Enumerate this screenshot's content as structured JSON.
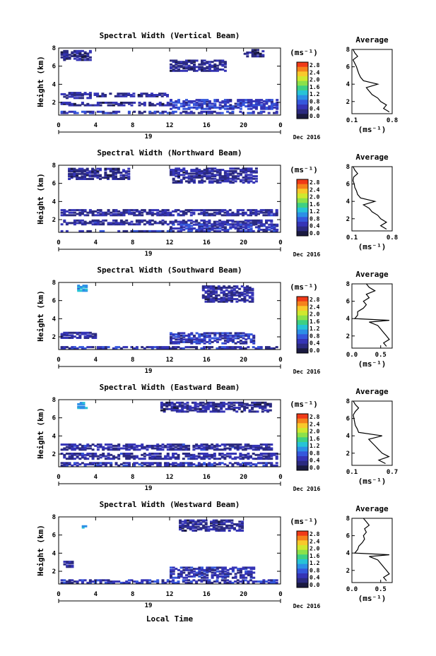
{
  "figure": {
    "xlabel": "Local Time",
    "date_label": "19",
    "month_label": "Dec 2016"
  },
  "colorbar": {
    "unit": "(ms⁻¹)",
    "ticks": [
      "2.8",
      "2.4",
      "2.0",
      "1.6",
      "1.2",
      "0.8",
      "0.4",
      "0.0"
    ],
    "colors": [
      "#f03a18",
      "#f5821c",
      "#f8c92b",
      "#cfe82f",
      "#8be14a",
      "#3ed083",
      "#27c3d6",
      "#2c8fe6",
      "#3557dc",
      "#3534b6",
      "#2b2a80",
      "#1a1a40"
    ]
  },
  "chart_data": [
    {
      "type": "heatmap",
      "title": "Spectral Width (Vertical Beam)",
      "xlabel": "Local Time",
      "ylabel": "Height (km)",
      "xlim": [
        0,
        24
      ],
      "ylim": [
        0.6,
        8
      ],
      "xticks": [
        "0",
        "4",
        "8",
        "12",
        "16",
        "20",
        "0"
      ],
      "yticks": [
        "2",
        "4",
        "6",
        "8"
      ],
      "patches": [
        {
          "t": [
            0.2,
            3.4
          ],
          "h": [
            6.8,
            7.9
          ],
          "v": 0.3
        },
        {
          "t": [
            12.0,
            18.0
          ],
          "h": [
            5.6,
            6.8
          ],
          "v": 0.35
        },
        {
          "t": [
            20.0,
            22.0
          ],
          "h": [
            7.2,
            7.9
          ],
          "v": 0.3
        },
        {
          "t": [
            0.2,
            3.5
          ],
          "h": [
            2.6,
            3.3
          ],
          "v": 0.4
        },
        {
          "t": [
            3.5,
            12.0
          ],
          "h": [
            2.8,
            3.1
          ],
          "v": 0.35
        },
        {
          "t": [
            12.0,
            23.5
          ],
          "h": [
            1.4,
            2.4
          ],
          "v": 0.6
        },
        {
          "t": [
            0.2,
            12.0
          ],
          "h": [
            1.8,
            2.1
          ],
          "v": 0.35
        },
        {
          "t": [
            0.2,
            23.8
          ],
          "h": [
            0.8,
            1.2
          ],
          "v": 0.5
        }
      ],
      "average": {
        "xlabel": "(ms⁻¹)",
        "xlim": [
          0.1,
          0.8
        ],
        "xticks": [
          "0.1",
          "0.8"
        ],
        "profile": [
          [
            0.8,
            0.75
          ],
          [
            1.2,
            0.65
          ],
          [
            1.6,
            0.7
          ],
          [
            2.0,
            0.6
          ],
          [
            2.4,
            0.55
          ],
          [
            2.8,
            0.45
          ],
          [
            3.2,
            0.4
          ],
          [
            3.6,
            0.35
          ],
          [
            4.0,
            0.55
          ],
          [
            4.4,
            0.3
          ],
          [
            4.8,
            0.25
          ],
          [
            5.2,
            0.22
          ],
          [
            5.6,
            0.2
          ],
          [
            6.0,
            0.18
          ],
          [
            6.4,
            0.15
          ],
          [
            6.8,
            0.12
          ],
          [
            7.2,
            0.2
          ],
          [
            7.6,
            0.15
          ],
          [
            8.0,
            0.12
          ]
        ]
      }
    },
    {
      "type": "heatmap",
      "title": "Spectral Width (Northward Beam)",
      "xlabel": "Local Time",
      "ylabel": "Height (km)",
      "xlim": [
        0,
        24
      ],
      "ylim": [
        0.6,
        8
      ],
      "xticks": [
        "0",
        "4",
        "8",
        "12",
        "16",
        "20",
        "0"
      ],
      "yticks": [
        "2",
        "4",
        "6",
        "8"
      ],
      "patches": [
        {
          "t": [
            1.0,
            7.5
          ],
          "h": [
            6.6,
            7.8
          ],
          "v": 0.3
        },
        {
          "t": [
            12.0,
            21.5
          ],
          "h": [
            6.2,
            7.8
          ],
          "v": 0.35
        },
        {
          "t": [
            0.2,
            23.8
          ],
          "h": [
            2.6,
            3.3
          ],
          "v": 0.4
        },
        {
          "t": [
            0.2,
            23.0
          ],
          "h": [
            1.6,
            2.1
          ],
          "v": 0.4
        },
        {
          "t": [
            12.0,
            23.5
          ],
          "h": [
            1.0,
            1.6
          ],
          "v": 0.55
        },
        {
          "t": [
            0.2,
            23.8
          ],
          "h": [
            0.7,
            0.95
          ],
          "v": 0.5
        }
      ],
      "average": {
        "xlabel": "(ms⁻¹)",
        "xlim": [
          0.1,
          0.8
        ],
        "xticks": [
          "0.1",
          "0.8"
        ],
        "profile": [
          [
            0.8,
            0.7
          ],
          [
            1.2,
            0.6
          ],
          [
            1.6,
            0.7
          ],
          [
            2.0,
            0.6
          ],
          [
            2.4,
            0.55
          ],
          [
            2.8,
            0.45
          ],
          [
            3.2,
            0.4
          ],
          [
            3.6,
            0.3
          ],
          [
            4.0,
            0.5
          ],
          [
            4.4,
            0.25
          ],
          [
            4.8,
            0.2
          ],
          [
            5.2,
            0.18
          ],
          [
            5.6,
            0.15
          ],
          [
            6.0,
            0.14
          ],
          [
            6.4,
            0.12
          ],
          [
            6.8,
            0.13
          ],
          [
            7.2,
            0.2
          ],
          [
            7.6,
            0.15
          ],
          [
            8.0,
            0.12
          ]
        ]
      }
    },
    {
      "type": "heatmap",
      "title": "Spectral Width (Southward Beam)",
      "xlabel": "Local Time",
      "ylabel": "Height (km)",
      "xlim": [
        0,
        24
      ],
      "ylim": [
        0.6,
        8
      ],
      "xticks": [
        "0",
        "4",
        "8",
        "12",
        "16",
        "20",
        "0"
      ],
      "yticks": [
        "2",
        "4",
        "6",
        "8"
      ],
      "patches": [
        {
          "t": [
            2.0,
            3.0
          ],
          "h": [
            7.2,
            7.8
          ],
          "v": 1.1
        },
        {
          "t": [
            15.5,
            21.0
          ],
          "h": [
            6.0,
            7.8
          ],
          "v": 0.35
        },
        {
          "t": [
            0.2,
            4.0
          ],
          "h": [
            2.0,
            2.7
          ],
          "v": 0.4
        },
        {
          "t": [
            12.0,
            21.0
          ],
          "h": [
            1.4,
            2.6
          ],
          "v": 0.5
        },
        {
          "t": [
            0.2,
            23.5
          ],
          "h": [
            0.7,
            1.1
          ],
          "v": 0.5
        }
      ],
      "average": {
        "xlabel": "(ms⁻¹)",
        "xlim": [
          0.0,
          0.7
        ],
        "xticks": [
          "0.0",
          "0.5"
        ],
        "profile": [
          [
            0.8,
            0.6
          ],
          [
            1.2,
            0.55
          ],
          [
            1.6,
            0.65
          ],
          [
            2.0,
            0.6
          ],
          [
            2.4,
            0.55
          ],
          [
            2.8,
            0.5
          ],
          [
            3.2,
            0.45
          ],
          [
            3.6,
            0.3
          ],
          [
            3.8,
            0.65
          ],
          [
            4.0,
            0.05
          ],
          [
            4.4,
            0.1
          ],
          [
            4.8,
            0.1
          ],
          [
            5.2,
            0.2
          ],
          [
            5.6,
            0.25
          ],
          [
            6.0,
            0.2
          ],
          [
            6.4,
            0.3
          ],
          [
            6.8,
            0.25
          ],
          [
            7.2,
            0.4
          ],
          [
            7.6,
            0.3
          ],
          [
            8.0,
            0.25
          ]
        ]
      }
    },
    {
      "type": "heatmap",
      "title": "Spectral Width (Eastward Beam)",
      "xlabel": "Local Time",
      "ylabel": "Height (km)",
      "xlim": [
        0,
        24
      ],
      "ylim": [
        0.6,
        8
      ],
      "xticks": [
        "0",
        "4",
        "8",
        "12",
        "16",
        "20",
        "0"
      ],
      "yticks": [
        "2",
        "4",
        "6",
        "8"
      ],
      "patches": [
        {
          "t": [
            2.0,
            3.0
          ],
          "h": [
            7.2,
            7.8
          ],
          "v": 1.1
        },
        {
          "t": [
            11.0,
            23.0
          ],
          "h": [
            6.8,
            7.8
          ],
          "v": 0.35
        },
        {
          "t": [
            0.2,
            23.0
          ],
          "h": [
            2.6,
            3.3
          ],
          "v": 0.4
        },
        {
          "t": [
            0.2,
            23.5
          ],
          "h": [
            1.6,
            2.3
          ],
          "v": 0.4
        },
        {
          "t": [
            0.2,
            23.8
          ],
          "h": [
            0.7,
            1.2
          ],
          "v": 0.5
        }
      ],
      "average": {
        "xlabel": "(ms⁻¹)",
        "xlim": [
          0.1,
          0.7
        ],
        "xticks": [
          "0.1",
          "0.7"
        ],
        "profile": [
          [
            0.8,
            0.6
          ],
          [
            1.2,
            0.5
          ],
          [
            1.6,
            0.65
          ],
          [
            2.0,
            0.55
          ],
          [
            2.4,
            0.5
          ],
          [
            2.8,
            0.45
          ],
          [
            3.2,
            0.4
          ],
          [
            3.6,
            0.35
          ],
          [
            4.0,
            0.55
          ],
          [
            4.4,
            0.2
          ],
          [
            4.8,
            0.18
          ],
          [
            5.2,
            0.15
          ],
          [
            5.6,
            0.14
          ],
          [
            6.0,
            0.13
          ],
          [
            6.4,
            0.12
          ],
          [
            6.8,
            0.15
          ],
          [
            7.2,
            0.2
          ],
          [
            7.6,
            0.15
          ],
          [
            8.0,
            0.12
          ]
        ]
      }
    },
    {
      "type": "heatmap",
      "title": "Spectral Width (Westward Beam)",
      "xlabel": "Local Time",
      "ylabel": "Height (km)",
      "xlim": [
        0,
        24
      ],
      "ylim": [
        0.6,
        8
      ],
      "xticks": [
        "0",
        "4",
        "8",
        "12",
        "16",
        "20",
        "0"
      ],
      "yticks": [
        "2",
        "4",
        "6",
        "8"
      ],
      "patches": [
        {
          "t": [
            2.5,
            3.0
          ],
          "h": [
            6.8,
            7.2
          ],
          "v": 1.1
        },
        {
          "t": [
            13.0,
            20.0
          ],
          "h": [
            6.6,
            7.8
          ],
          "v": 0.35
        },
        {
          "t": [
            0.5,
            1.5
          ],
          "h": [
            2.6,
            3.2
          ],
          "v": 0.4
        },
        {
          "t": [
            12.0,
            21.0
          ],
          "h": [
            1.4,
            2.6
          ],
          "v": 0.5
        },
        {
          "t": [
            0.2,
            23.5
          ],
          "h": [
            0.7,
            1.2
          ],
          "v": 0.5
        }
      ],
      "average": {
        "xlabel": "(ms⁻¹)",
        "xlim": [
          0.0,
          0.7
        ],
        "xticks": [
          "0.0",
          "0.5"
        ],
        "profile": [
          [
            0.8,
            0.6
          ],
          [
            1.2,
            0.55
          ],
          [
            1.6,
            0.65
          ],
          [
            2.0,
            0.6
          ],
          [
            2.4,
            0.55
          ],
          [
            2.8,
            0.5
          ],
          [
            3.2,
            0.45
          ],
          [
            3.6,
            0.3
          ],
          [
            3.8,
            0.65
          ],
          [
            4.0,
            0.05
          ],
          [
            4.4,
            0.1
          ],
          [
            4.8,
            0.12
          ],
          [
            5.2,
            0.18
          ],
          [
            5.6,
            0.22
          ],
          [
            6.0,
            0.2
          ],
          [
            6.4,
            0.25
          ],
          [
            6.8,
            0.22
          ],
          [
            7.2,
            0.3
          ],
          [
            7.6,
            0.25
          ],
          [
            8.0,
            0.2
          ]
        ]
      }
    }
  ]
}
